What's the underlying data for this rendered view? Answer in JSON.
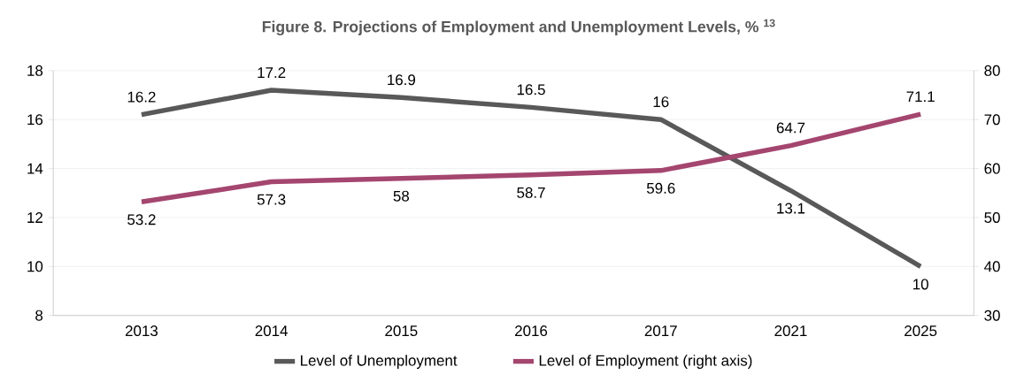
{
  "chart_data": {
    "type": "line",
    "title": "Figure 8. Projections of Employment and Unemployment Levels, % $^{13}$",
    "categories": [
      "2013",
      "2014",
      "2015",
      "2016",
      "2017",
      "2021",
      "2025"
    ],
    "series": [
      {
        "name": "Level of Unemployment",
        "color": "#595959",
        "values": [
          16.2,
          17.2,
          16.9,
          16.5,
          16,
          13.1,
          10
        ]
      },
      {
        "name": "Level of Employment (right axis)",
        "color": "#a4466f",
        "axis": "y2",
        "values": [
          53.2,
          57.3,
          58,
          58.7,
          59.6,
          64.7,
          71.1
        ]
      }
    ],
    "ylim": [
      8,
      18
    ],
    "yticks": [
      8,
      10,
      12,
      14,
      16,
      18
    ],
    "y2lim": [
      30,
      80
    ],
    "y2ticks": [
      30,
      40,
      50,
      60,
      70,
      80
    ],
    "grid": "y",
    "legend": "bottom",
    "data_labels": true,
    "marker": "none",
    "line_style": "solid"
  }
}
